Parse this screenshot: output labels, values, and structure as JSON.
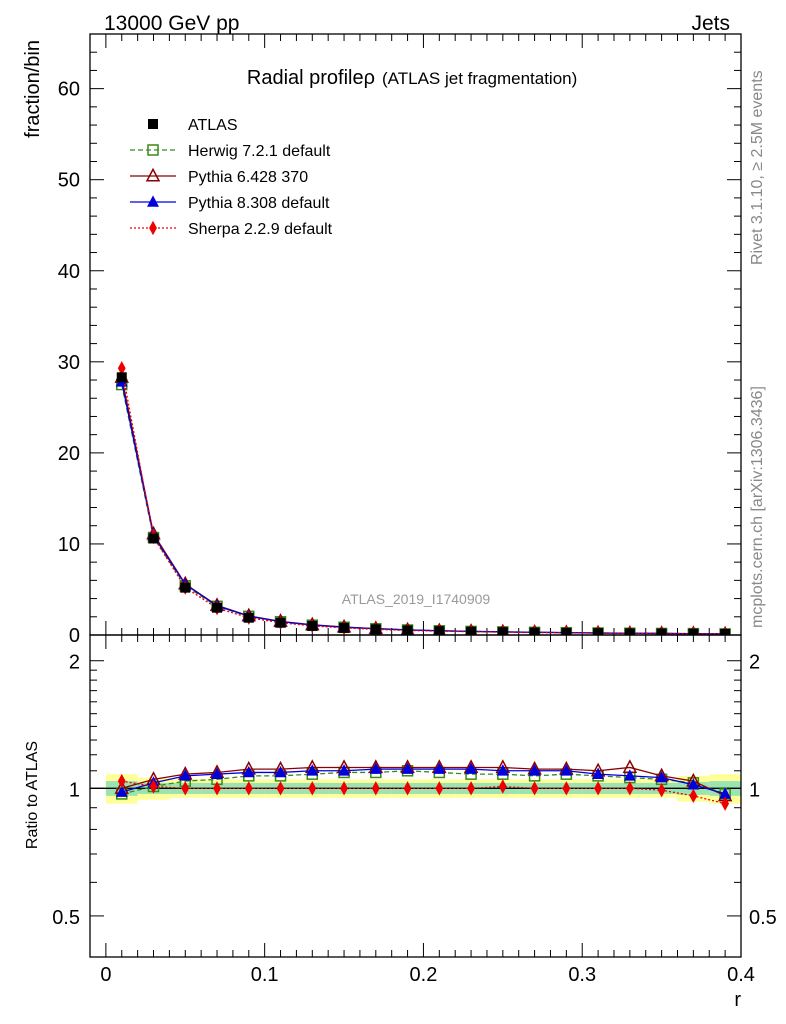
{
  "header": {
    "left": "13000 GeV pp",
    "right": "Jets"
  },
  "side_labels": {
    "rivet": "Rivet 3.1.10, ≥ 2.5M events",
    "mcplots": "mcplots.cern.ch [arXiv:1306.3436]"
  },
  "watermark": "ATLAS_2019_I1740909",
  "chart_data": [
    {
      "type": "line",
      "title": "Radial profileρ",
      "title_suffix": "(ATLAS jet fragmentation)",
      "xlabel": "",
      "ylabel": "fraction/bin",
      "xlim": [
        -0.01,
        0.4
      ],
      "ylim": [
        0,
        66
      ],
      "yticks": [
        0,
        10,
        20,
        30,
        40,
        50,
        60
      ],
      "x": [
        0.01,
        0.03,
        0.05,
        0.07,
        0.09,
        0.11,
        0.13,
        0.15,
        0.17,
        0.19,
        0.21,
        0.23,
        0.25,
        0.27,
        0.29,
        0.31,
        0.33,
        0.35,
        0.37,
        0.39
      ],
      "legend": {
        "placement": "top-left"
      },
      "series": [
        {
          "name": "ATLAS",
          "color": "#000000",
          "marker": "square-filled",
          "values": [
            28.3,
            10.6,
            5.2,
            3.0,
            1.9,
            1.35,
            1.0,
            0.78,
            0.62,
            0.5,
            0.42,
            0.36,
            0.31,
            0.27,
            0.23,
            0.2,
            0.18,
            0.16,
            0.14,
            0.12
          ]
        },
        {
          "name": "Herwig 7.2.1 default",
          "color": "#3a8a1a",
          "marker": "square-open",
          "dash": "5,3",
          "values": [
            27.5,
            10.7,
            5.4,
            3.15,
            2.05,
            1.45,
            1.08,
            0.85,
            0.68,
            0.55,
            0.46,
            0.39,
            0.34,
            0.29,
            0.25,
            0.22,
            0.19,
            0.17,
            0.15,
            0.12
          ]
        },
        {
          "name": "Pythia 6.428 370",
          "color": "#8b0000",
          "marker": "triangle-open",
          "values": [
            28.3,
            11.1,
            5.6,
            3.25,
            2.1,
            1.5,
            1.12,
            0.87,
            0.7,
            0.56,
            0.47,
            0.4,
            0.35,
            0.3,
            0.26,
            0.22,
            0.2,
            0.17,
            0.15,
            0.12
          ]
        },
        {
          "name": "Pythia 8.308 default",
          "color": "#0000dd",
          "marker": "triangle-filled",
          "values": [
            27.8,
            10.9,
            5.55,
            3.2,
            2.07,
            1.47,
            1.1,
            0.86,
            0.69,
            0.56,
            0.47,
            0.4,
            0.34,
            0.3,
            0.26,
            0.22,
            0.19,
            0.17,
            0.14,
            0.12
          ]
        },
        {
          "name": "Sherpa 2.2.9 default",
          "color": "#ee0000",
          "marker": "diamond-filled",
          "dash": "2,2",
          "values": [
            29.3,
            10.75,
            5.2,
            2.95,
            1.9,
            1.35,
            1.0,
            0.78,
            0.62,
            0.5,
            0.42,
            0.36,
            0.31,
            0.27,
            0.23,
            0.2,
            0.18,
            0.16,
            0.13,
            0.11
          ]
        }
      ]
    },
    {
      "type": "line",
      "title": "",
      "xlabel": "r",
      "ylabel": "Ratio to ATLAS",
      "xlim": [
        -0.01,
        0.4
      ],
      "ylim": [
        0.4,
        2.3
      ],
      "yscale": "log",
      "yticks": [
        0.5,
        1,
        2
      ],
      "xticks": [
        0,
        0.1,
        0.2,
        0.3,
        0.4
      ],
      "x": [
        0.01,
        0.03,
        0.05,
        0.07,
        0.09,
        0.11,
        0.13,
        0.15,
        0.17,
        0.19,
        0.21,
        0.23,
        0.25,
        0.27,
        0.29,
        0.31,
        0.33,
        0.35,
        0.37,
        0.39
      ],
      "band_inner": [
        0.04,
        0.03,
        0.03,
        0.03,
        0.03,
        0.03,
        0.03,
        0.03,
        0.03,
        0.03,
        0.03,
        0.03,
        0.03,
        0.03,
        0.03,
        0.03,
        0.03,
        0.03,
        0.035,
        0.04
      ],
      "band_outer": [
        0.08,
        0.06,
        0.05,
        0.05,
        0.05,
        0.05,
        0.05,
        0.05,
        0.05,
        0.05,
        0.05,
        0.05,
        0.05,
        0.05,
        0.05,
        0.05,
        0.05,
        0.05,
        0.07,
        0.08
      ],
      "series": [
        {
          "name": "Herwig 7.2.1 default",
          "color": "#3a8a1a",
          "marker": "square-open",
          "dash": "5,3",
          "values": [
            0.97,
            1.01,
            1.04,
            1.05,
            1.07,
            1.07,
            1.08,
            1.09,
            1.09,
            1.1,
            1.09,
            1.08,
            1.08,
            1.07,
            1.08,
            1.07,
            1.06,
            1.05,
            1.03,
            0.97
          ]
        },
        {
          "name": "Pythia 6.428 370",
          "color": "#8b0000",
          "marker": "triangle-open",
          "values": [
            1.0,
            1.05,
            1.08,
            1.09,
            1.11,
            1.11,
            1.12,
            1.12,
            1.12,
            1.12,
            1.12,
            1.12,
            1.12,
            1.11,
            1.11,
            1.1,
            1.12,
            1.07,
            1.04,
            0.96
          ]
        },
        {
          "name": "Pythia 8.308 default",
          "color": "#0000dd",
          "marker": "triangle-filled",
          "values": [
            0.98,
            1.03,
            1.07,
            1.08,
            1.09,
            1.09,
            1.1,
            1.1,
            1.11,
            1.11,
            1.11,
            1.11,
            1.1,
            1.1,
            1.1,
            1.08,
            1.07,
            1.06,
            1.02,
            0.97
          ]
        },
        {
          "name": "Sherpa 2.2.9 default",
          "color": "#ee0000",
          "marker": "diamond-filled",
          "dash": "2,2",
          "values": [
            1.04,
            1.01,
            1.0,
            1.0,
            1.0,
            1.0,
            1.0,
            1.0,
            1.0,
            1.0,
            1.0,
            1.0,
            1.01,
            1.0,
            1.0,
            1.0,
            1.0,
            0.99,
            0.96,
            0.92
          ]
        }
      ]
    }
  ]
}
